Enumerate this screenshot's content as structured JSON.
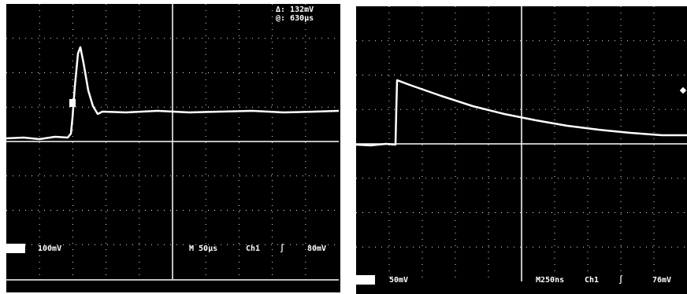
{
  "left_screen": {
    "cursor_readout": [
      "Δ: 132mV",
      "@: 630µs"
    ],
    "ch1_scale": "100mV",
    "timebase": "M 50µs",
    "channel": "Ch1",
    "trigger_level": "80mV"
  },
  "right_screen": {
    "ch1_scale": "50mV",
    "timebase": "M250ns",
    "channel": "Ch1",
    "trigger_level": "76mV"
  }
}
